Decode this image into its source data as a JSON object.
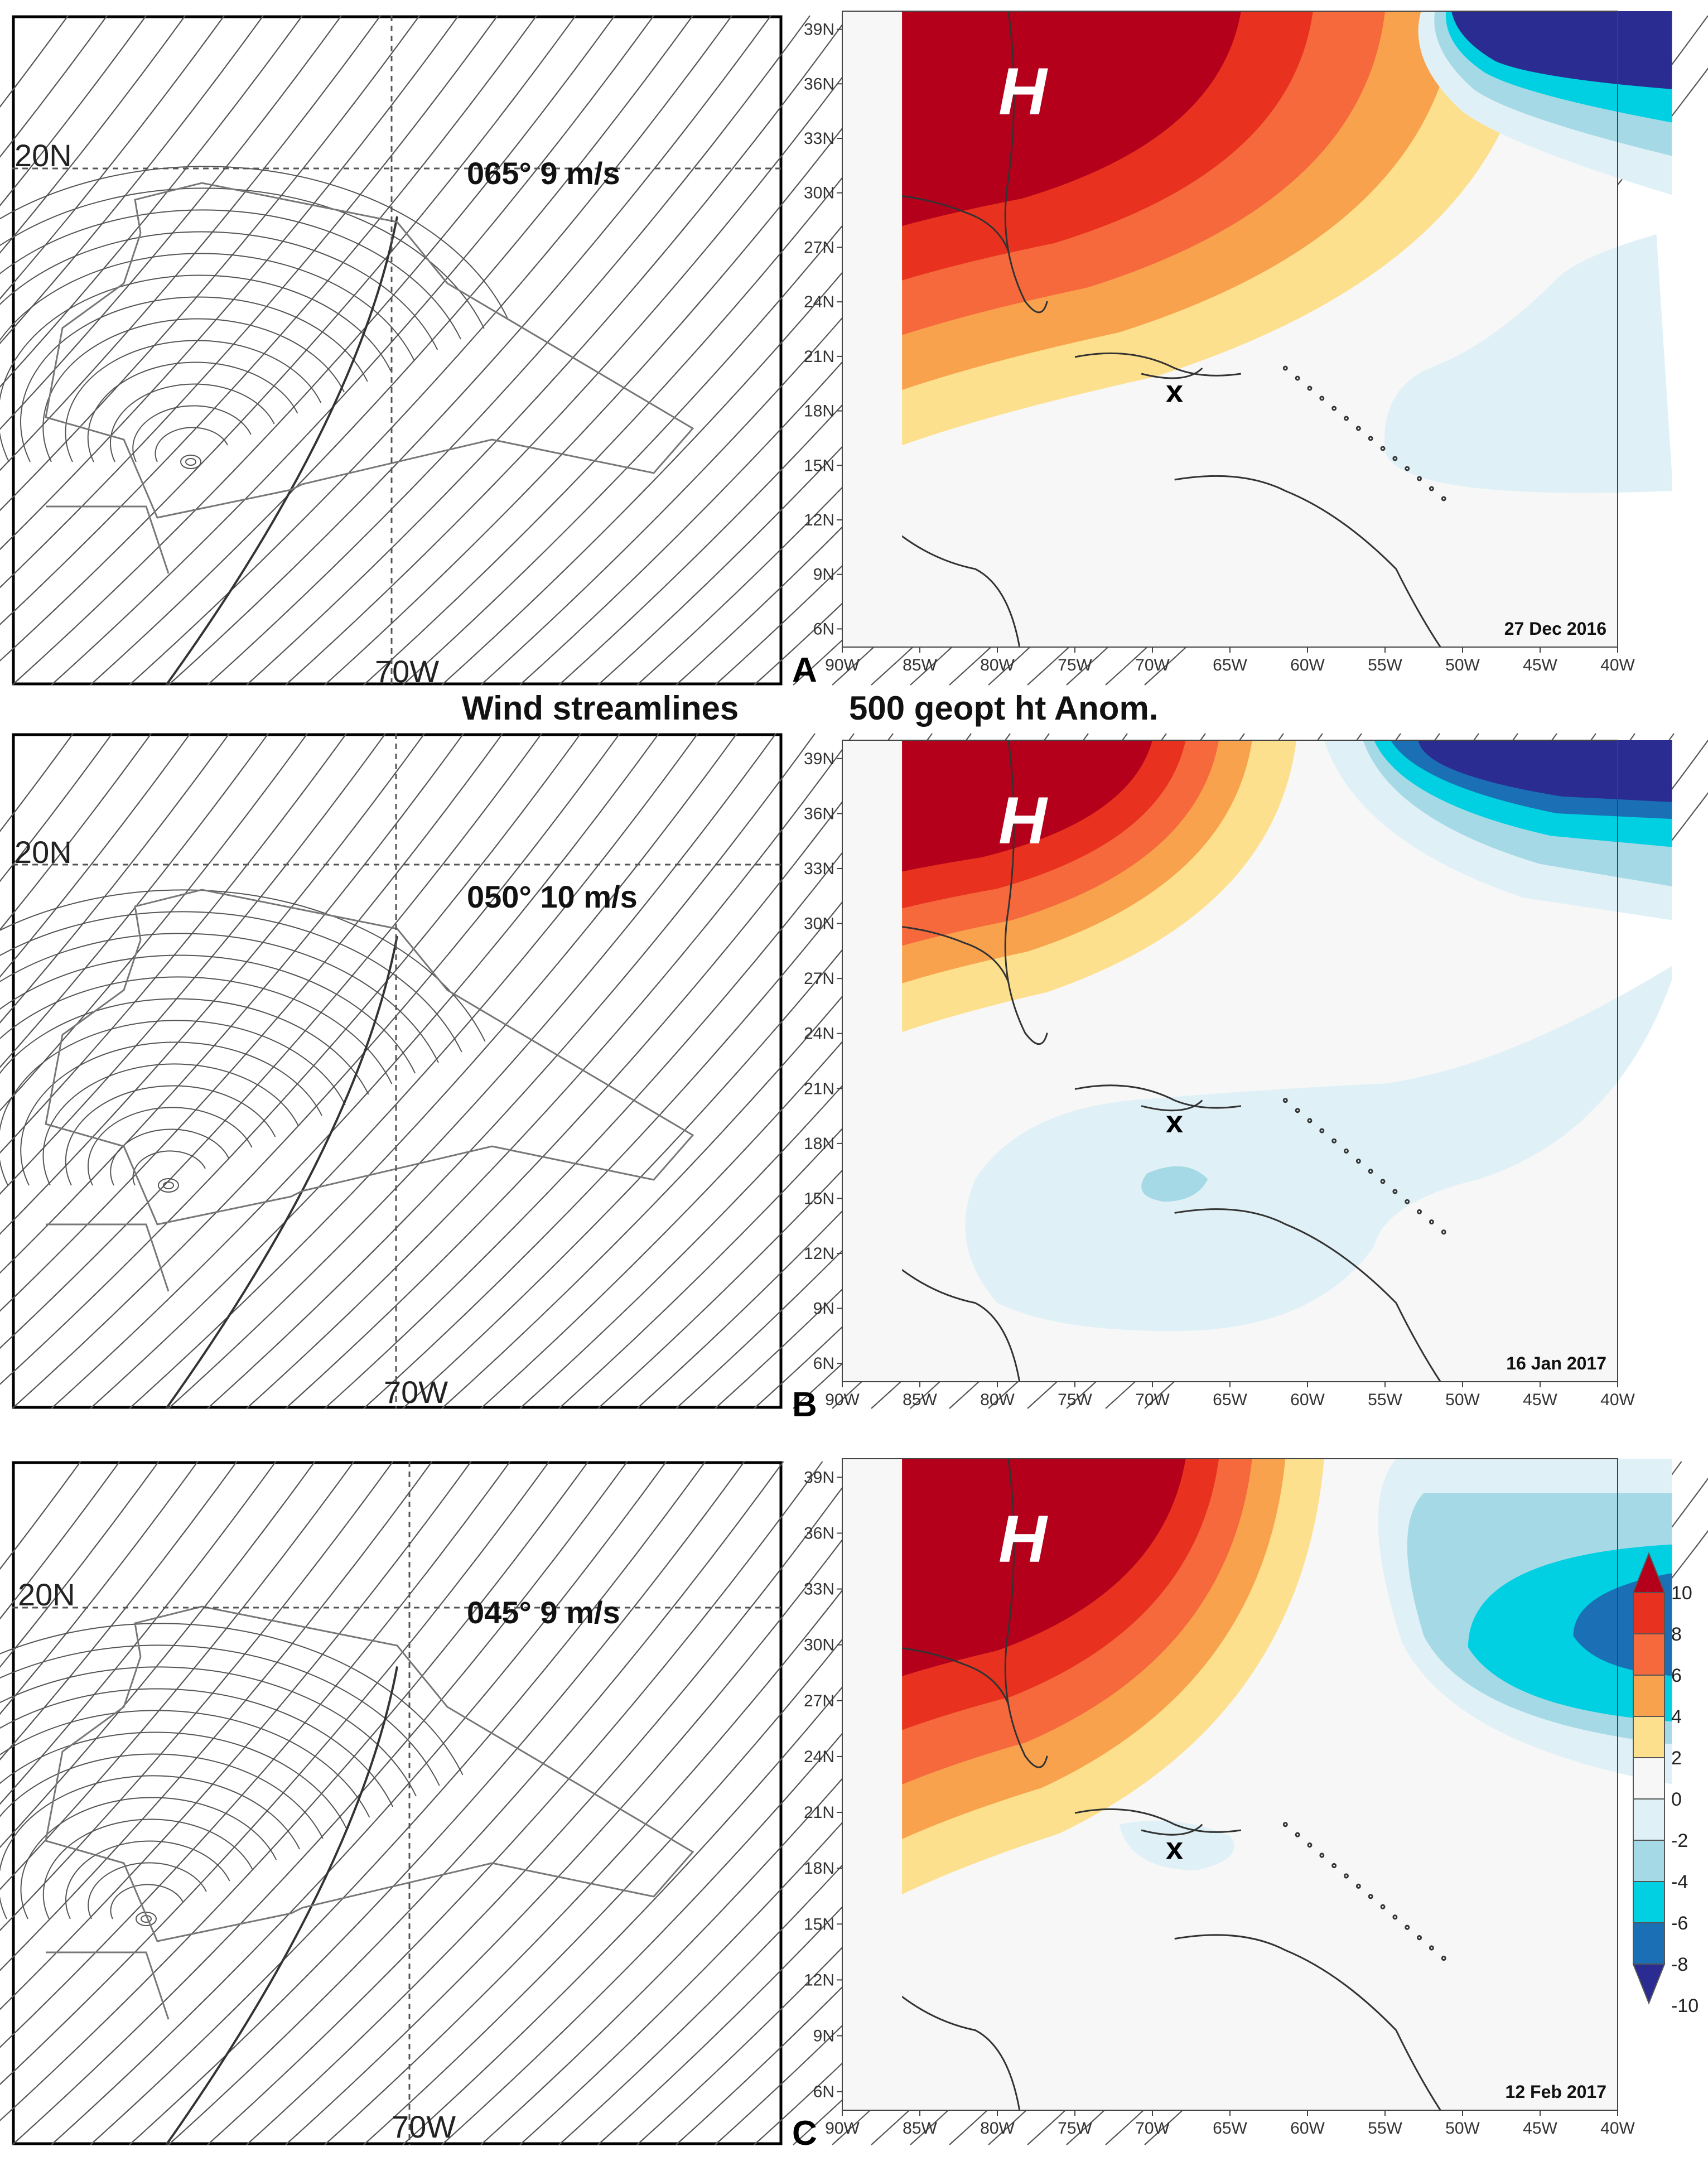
{
  "section_titles": {
    "left": "Wind streamlines",
    "right": "500 geopt ht Anom."
  },
  "panels": [
    {
      "letter": "A",
      "lat_label": "20N",
      "lon_label": "70W",
      "wind": "065° 9 m/s",
      "date": "27 Dec 2016",
      "high_label": "H",
      "marker": "x"
    },
    {
      "letter": "B",
      "lat_label": "20N",
      "lon_label": "70W",
      "wind": "050° 10 m/s",
      "date": "16 Jan 2017",
      "high_label": "H",
      "marker": "x"
    },
    {
      "letter": "C",
      "lat_label": "20N",
      "lon_label": "70W",
      "wind": "045° 9 m/s",
      "date": "12 Feb 2017",
      "high_label": "H",
      "marker": "x"
    }
  ],
  "map_axes": {
    "lat_ticks": [
      "39N",
      "36N",
      "33N",
      "30N",
      "27N",
      "24N",
      "21N",
      "18N",
      "15N",
      "12N",
      "9N",
      "6N"
    ],
    "lon_ticks": [
      "90W",
      "85W",
      "80W",
      "75W",
      "70W",
      "65W",
      "60W",
      "55W",
      "50W",
      "45W",
      "40W"
    ],
    "lat_range": [
      5,
      40
    ],
    "lon_range": [
      -90,
      -40
    ]
  },
  "colorbar": {
    "ticks": [
      "10",
      "8",
      "6",
      "4",
      "2",
      "0",
      "-2",
      "-4",
      "-6",
      "-8",
      "-10"
    ],
    "colors": [
      "#b5001c",
      "#e8321f",
      "#f5693c",
      "#f9a24e",
      "#fde08d",
      "#f7f7f7",
      "#dff1f7",
      "#a6d9e6",
      "#00d0e1",
      "#1a6fb5",
      "#2a2c92"
    ]
  },
  "colors": {
    "frame": "#000000",
    "streamline": "#555555",
    "land_outline": "#333333",
    "background": "#f7f7f7"
  }
}
